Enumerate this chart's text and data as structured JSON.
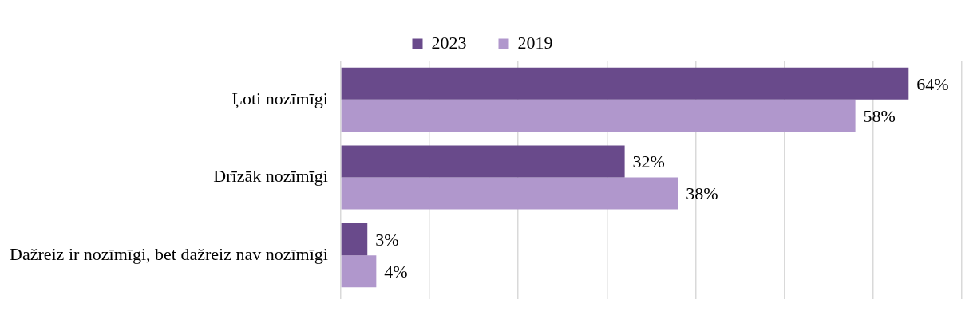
{
  "chart_data": {
    "type": "bar",
    "orientation": "horizontal",
    "categories": [
      "Ļoti nozīmīgi",
      "Drīzāk nozīmīgi",
      "Dažreiz ir nozīmīgi, bet dažreiz nav nozīmīgi"
    ],
    "series": [
      {
        "name": "2023",
        "color": "#694a8b",
        "values": [
          64,
          32,
          3
        ],
        "value_labels": [
          "64%",
          "32%",
          "3%"
        ]
      },
      {
        "name": "2019",
        "color": "#b097cc",
        "values": [
          58,
          38,
          4
        ],
        "value_labels": [
          "58%",
          "38%",
          "4%"
        ]
      }
    ],
    "xlim": [
      0,
      70
    ],
    "xticks": [
      {
        "value": 0,
        "label": null
      },
      {
        "value": 10,
        "label": null
      },
      {
        "value": 20,
        "label": null
      },
      {
        "value": 30,
        "label": null
      },
      {
        "value": 40,
        "label": null
      },
      {
        "value": 50,
        "label": null
      },
      {
        "value": 60,
        "label": null
      },
      {
        "value": 70,
        "label": null
      }
    ],
    "grid": "x",
    "legend": "top"
  }
}
